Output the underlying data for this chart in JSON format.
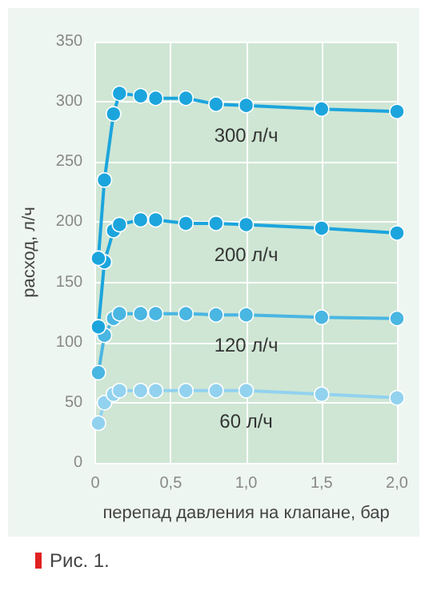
{
  "chart_data": {
    "type": "line",
    "xlabel": "перепад давления на клапане, бар",
    "ylabel": "расход, л/ч",
    "xlim": [
      0,
      2
    ],
    "xticks": [
      0,
      {
        "value": 0.5,
        "label": "0,5"
      },
      {
        "value": 1,
        "label": "1,0"
      },
      {
        "value": 1.5,
        "label": "1,5"
      },
      {
        "value": 2,
        "label": "2,0"
      }
    ],
    "ylim": [
      0,
      350
    ],
    "yticks": [
      0,
      50,
      100,
      150,
      200,
      250,
      300,
      350
    ],
    "grid": true,
    "legend": false,
    "marker": "circle",
    "line_style": "solid",
    "annotations": [
      "Рис. 1."
    ],
    "series": [
      {
        "name": "300 л/ч",
        "color": "#1ca5dd",
        "x": [
          0.02,
          0.06,
          0.12,
          0.16,
          0.3,
          0.4,
          0.6,
          0.8,
          1.0,
          1.5,
          2.0
        ],
        "values": [
          170,
          235,
          290,
          307,
          305,
          303,
          303,
          298,
          297,
          294,
          292
        ]
      },
      {
        "name": "200 л/ч",
        "color": "#1ca5dd",
        "x": [
          0.02,
          0.06,
          0.12,
          0.16,
          0.3,
          0.4,
          0.6,
          0.8,
          1.0,
          1.5,
          2.0
        ],
        "values": [
          113,
          167,
          193,
          198,
          202,
          202,
          199,
          199,
          198,
          195,
          191
        ]
      },
      {
        "name": "120 л/ч",
        "color": "#4ab6e2",
        "x": [
          0.02,
          0.06,
          0.12,
          0.16,
          0.3,
          0.4,
          0.6,
          0.8,
          1.0,
          1.5,
          2.0
        ],
        "values": [
          75,
          106,
          120,
          124,
          124,
          124,
          124,
          123,
          123,
          121,
          120
        ]
      },
      {
        "name": "60 л/ч",
        "color": "#92d2ef",
        "x": [
          0.02,
          0.06,
          0.12,
          0.16,
          0.3,
          0.4,
          0.6,
          0.8,
          1.0,
          1.5,
          2.0
        ],
        "values": [
          33,
          50,
          57,
          60,
          60,
          60,
          60,
          60,
          60,
          57,
          54
        ]
      }
    ]
  }
}
